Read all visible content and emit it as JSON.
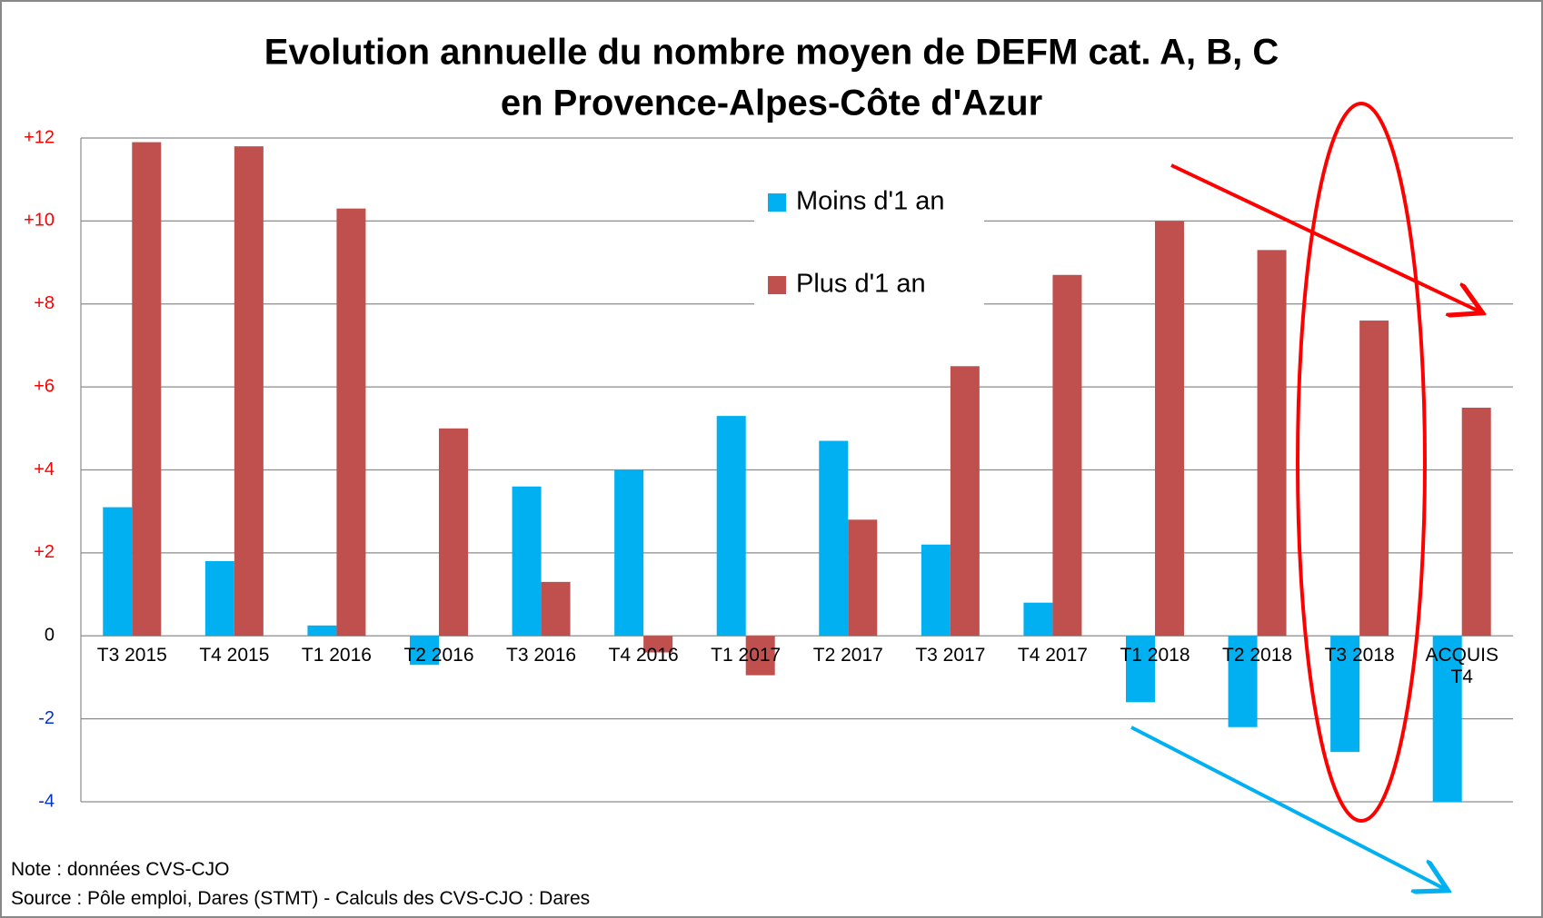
{
  "chart_data": {
    "type": "bar",
    "title": "Evolution annuelle du nombre moyen de DEFM cat. A, B, C",
    "subtitle": "en Provence-Alpes-Côte d'Azur",
    "categories": [
      "T3 2015",
      "T4 2015",
      "T1 2016",
      "T2 2016",
      "T3 2016",
      "T4 2016",
      "T1 2017",
      "T2 2017",
      "T3 2017",
      "T4 2017",
      "T1 2018",
      "T2 2018",
      "T3 2018",
      "ACQUIS T4"
    ],
    "series": [
      {
        "name": "Moins d'1 an",
        "color": "#00b0f0",
        "values": [
          3.1,
          1.8,
          0.25,
          -0.7,
          3.6,
          4.0,
          5.3,
          4.7,
          2.2,
          0.8,
          -1.6,
          -2.2,
          -2.8,
          -4.0
        ]
      },
      {
        "name": "Plus d'1 an",
        "color": "#c0504d",
        "values": [
          11.9,
          11.8,
          10.3,
          5.0,
          1.3,
          -0.4,
          -0.95,
          2.8,
          6.5,
          8.7,
          10.0,
          9.3,
          7.6,
          5.5
        ]
      }
    ],
    "ylim": [
      -4,
      12
    ],
    "yticks": [
      {
        "value": 12,
        "label": "+12"
      },
      {
        "value": 10,
        "label": "+10"
      },
      {
        "value": 8,
        "label": "+8"
      },
      {
        "value": 6,
        "label": "+6"
      },
      {
        "value": 4,
        "label": "+4"
      },
      {
        "value": 2,
        "label": "+2"
      },
      0,
      -2,
      -4
    ],
    "grid": true,
    "notes": [
      "Note : données CVS-CJO",
      "Source : Pôle emploi, Dares (STMT) - Calculs des CVS-CJO : Dares"
    ]
  }
}
